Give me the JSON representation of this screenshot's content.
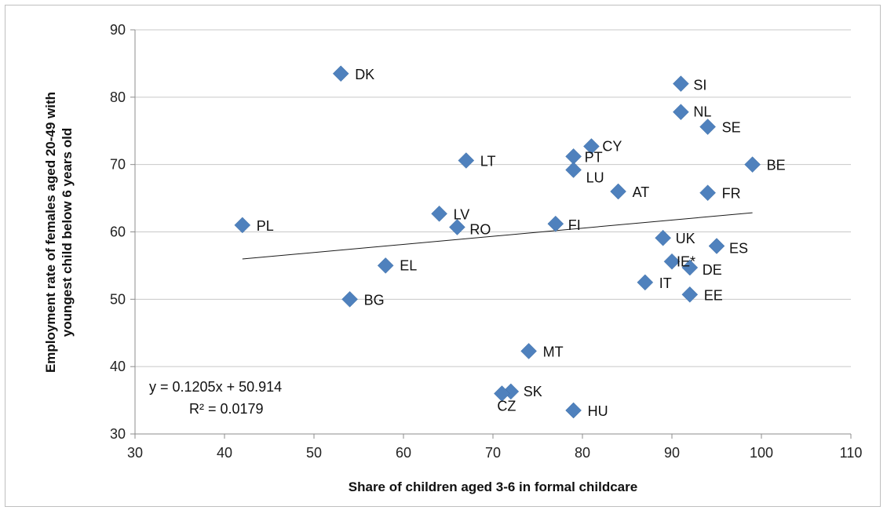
{
  "chart_data": {
    "type": "scatter",
    "title": "",
    "xlabel": "Share of children aged 3-6  in formal childcare",
    "ylabel_line1": "Employment rate of females aged 20-49 with",
    "ylabel_line2": "youngest child below 6 years old",
    "xlim": [
      30,
      110
    ],
    "ylim": [
      30,
      90
    ],
    "xticks": [
      30,
      40,
      50,
      60,
      70,
      80,
      90,
      100,
      110
    ],
    "yticks": [
      30,
      40,
      50,
      60,
      70,
      80,
      90
    ],
    "grid": "horizontal",
    "marker_color": "#4f81bd",
    "trendline": {
      "slope": 0.1205,
      "intercept": 50.914,
      "x_range": [
        42,
        99
      ],
      "equation": "y = 0.1205x + 50.914",
      "r2": "R² = 0.0179"
    },
    "points": [
      {
        "label": "DK",
        "x": 53,
        "y": 83.5
      },
      {
        "label": "SI",
        "x": 91,
        "y": 82
      },
      {
        "label": "NL",
        "x": 91,
        "y": 77.8
      },
      {
        "label": "SE",
        "x": 94,
        "y": 75.6
      },
      {
        "label": "CY",
        "x": 81,
        "y": 72.7
      },
      {
        "label": "PT",
        "x": 79,
        "y": 71.2
      },
      {
        "label": "LT",
        "x": 67,
        "y": 70.6
      },
      {
        "label": "BE",
        "x": 99,
        "y": 70
      },
      {
        "label": "LU",
        "x": 79,
        "y": 69.2
      },
      {
        "label": "AT",
        "x": 84,
        "y": 66
      },
      {
        "label": "FR",
        "x": 94,
        "y": 65.8
      },
      {
        "label": "LV",
        "x": 64,
        "y": 62.7
      },
      {
        "label": "FI",
        "x": 77,
        "y": 61.2
      },
      {
        "label": "PL",
        "x": 42,
        "y": 61
      },
      {
        "label": "RO",
        "x": 66,
        "y": 60.7
      },
      {
        "label": "UK",
        "x": 89,
        "y": 59.1
      },
      {
        "label": "ES",
        "x": 95,
        "y": 57.9
      },
      {
        "label": "IE*",
        "x": 90,
        "y": 55.6
      },
      {
        "label": "DE",
        "x": 92,
        "y": 54.7
      },
      {
        "label": "EL",
        "x": 58,
        "y": 55
      },
      {
        "label": "IT",
        "x": 87,
        "y": 52.5
      },
      {
        "label": "EE",
        "x": 92,
        "y": 50.7
      },
      {
        "label": "BG",
        "x": 54,
        "y": 50
      },
      {
        "label": "MT",
        "x": 74,
        "y": 42.3
      },
      {
        "label": "SK",
        "x": 72,
        "y": 36.3
      },
      {
        "label": "CZ",
        "x": 71,
        "y": 36
      },
      {
        "label": "HU",
        "x": 79,
        "y": 33.5
      }
    ]
  }
}
